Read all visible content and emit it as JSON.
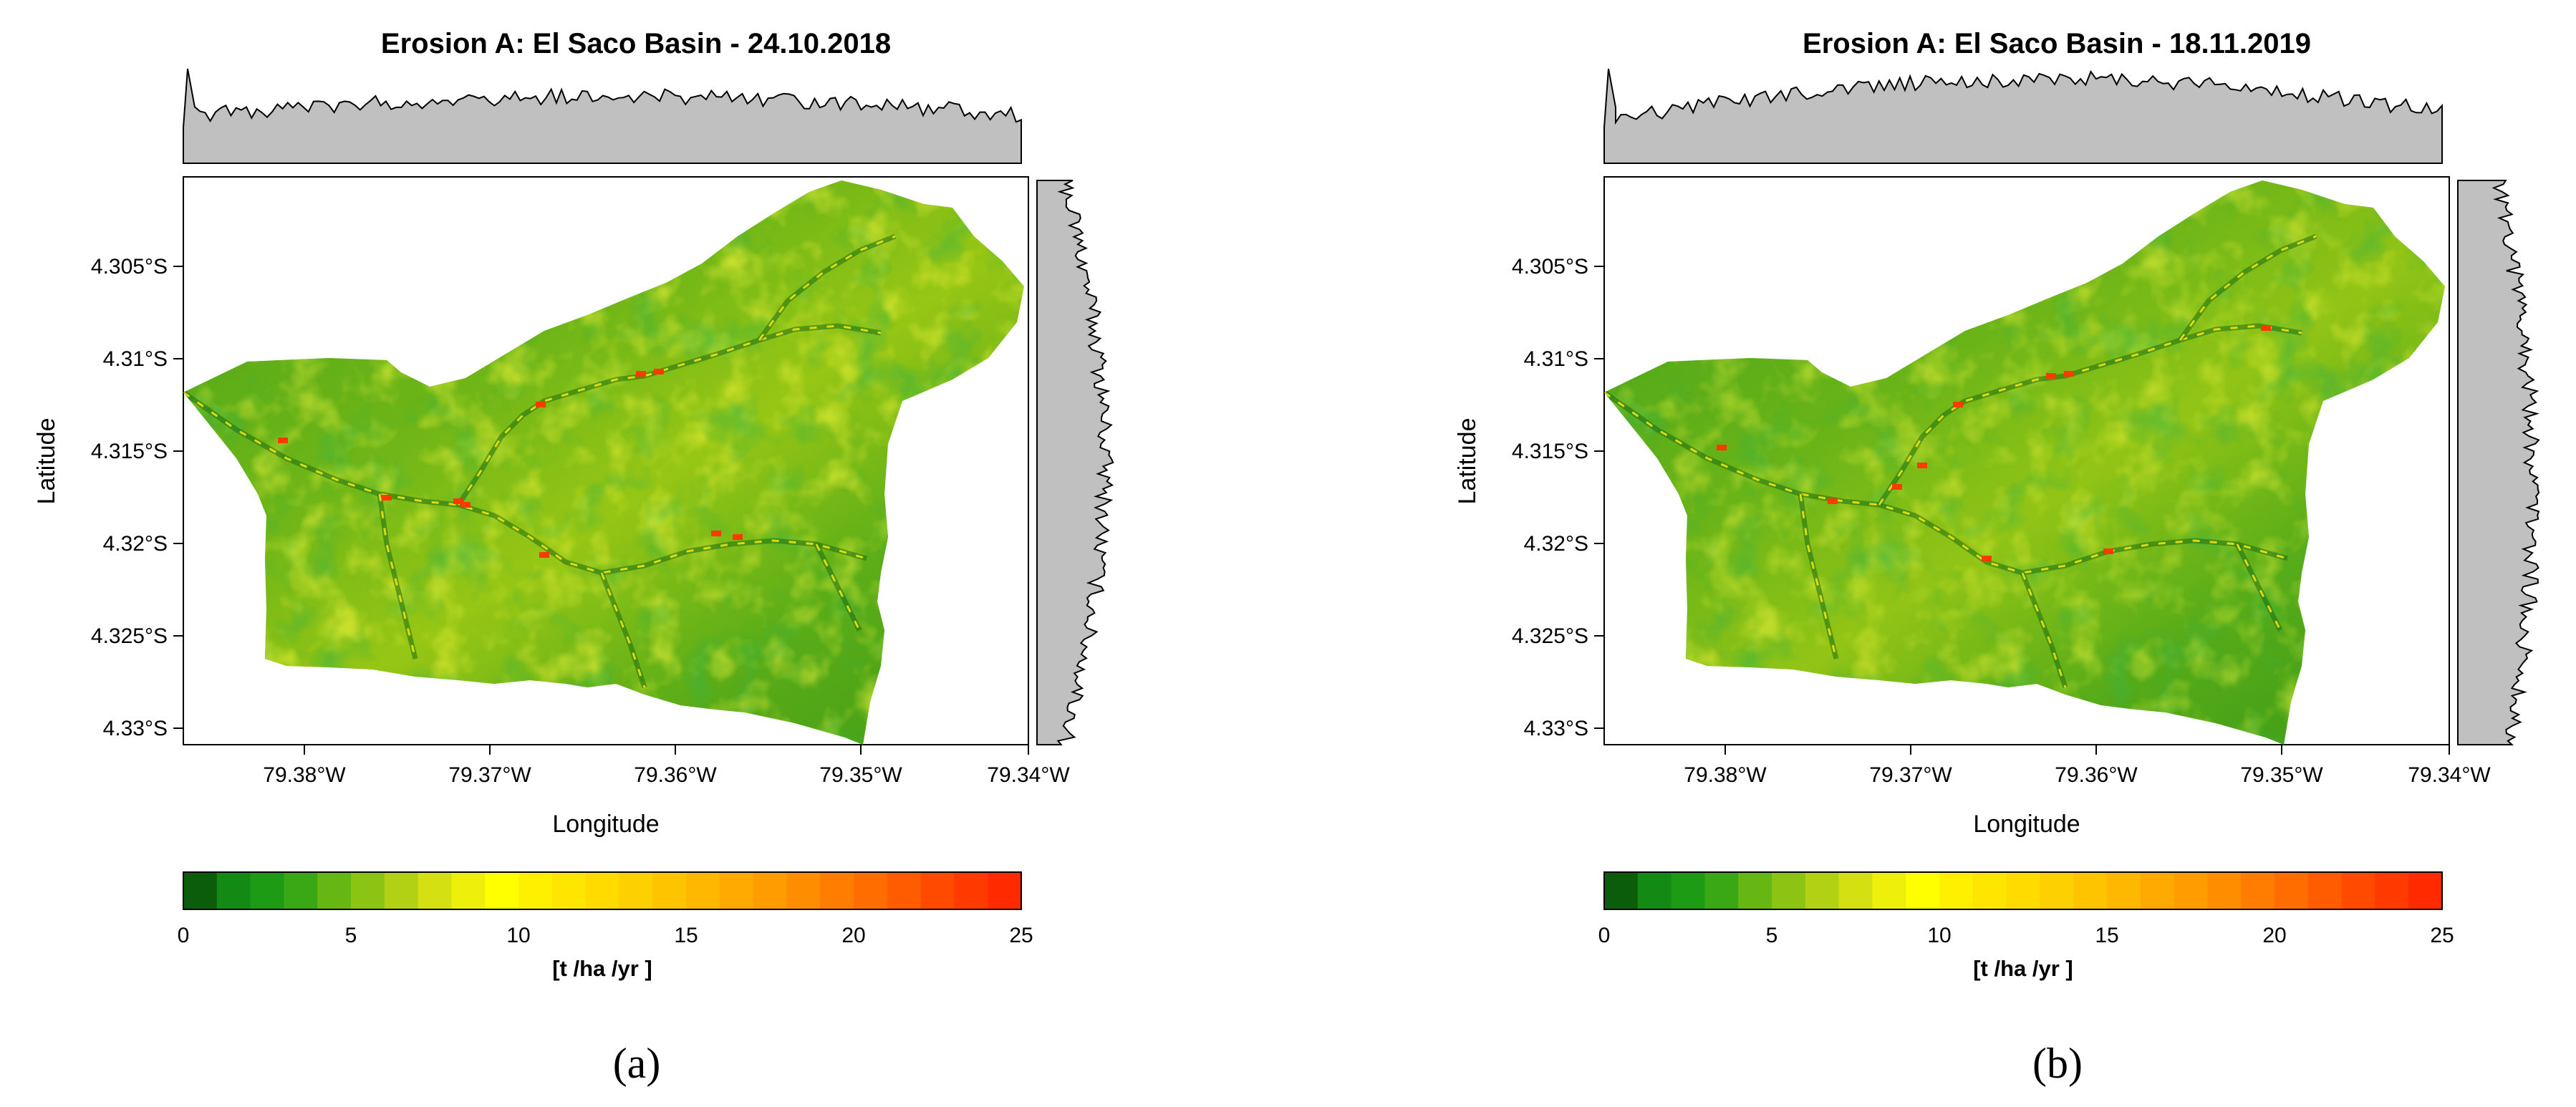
{
  "figure": {
    "panels": [
      {
        "id": "a",
        "title": "Erosion A: El Saco Basin - 24.10.2018",
        "xlabel": "Longitude",
        "ylabel": "Latitude",
        "x_ticks": [
          "79.38°W",
          "79.37°W",
          "79.36°W",
          "79.35°W",
          "79.34°W"
        ],
        "y_ticks": [
          "4.305°S",
          "4.31°S",
          "4.315°S",
          "4.32°S",
          "4.325°S",
          "4.33°S"
        ],
        "colorbar_ticks": [
          "0",
          "5",
          "10",
          "15",
          "20",
          "25"
        ],
        "colorbar_unit": "[t /ha /yr ]",
        "label": "(a)"
      },
      {
        "id": "b",
        "title": "Erosion A: El Saco Basin - 18.11.2019",
        "xlabel": "Longitude",
        "ylabel": "Latitude",
        "x_ticks": [
          "79.38°W",
          "79.37°W",
          "79.36°W",
          "79.35°W",
          "79.34°W"
        ],
        "y_ticks": [
          "4.305°S",
          "4.31°S",
          "4.315°S",
          "4.32°S",
          "4.325°S",
          "4.33°S"
        ],
        "colorbar_ticks": [
          "0",
          "5",
          "10",
          "15",
          "20",
          "25"
        ],
        "colorbar_unit": "[t /ha /yr ]",
        "label": "(b)"
      }
    ],
    "colorbar_colors": [
      "#0b5d0b",
      "#138a13",
      "#1e9b14",
      "#3aa814",
      "#66b614",
      "#8cc414",
      "#b2d014",
      "#d4e012",
      "#eef00c",
      "#ffff00",
      "#fff000",
      "#ffe600",
      "#ffdb00",
      "#ffd000",
      "#ffc400",
      "#ffb800",
      "#ffaa00",
      "#ff9c00",
      "#ff8d00",
      "#ff7d00",
      "#ff6c00",
      "#ff5b00",
      "#ff4a00",
      "#ff3a00",
      "#ff2a00"
    ],
    "map_palette": {
      "dark_green": "#1a8a1a",
      "green": "#4aa61a",
      "light_green": "#8cc414",
      "yellow": "#f2f00a",
      "red": "#ff3000"
    }
  }
}
